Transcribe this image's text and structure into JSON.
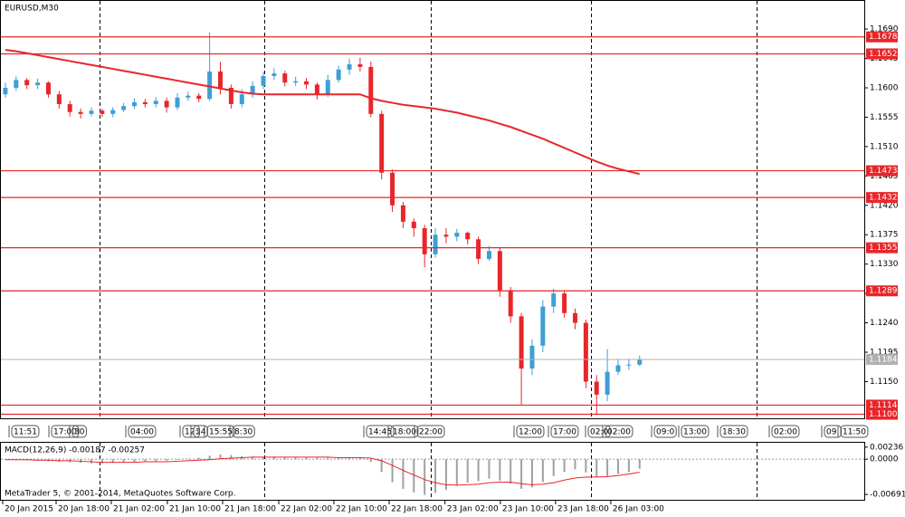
{
  "chart_data": [
    {
      "type": "candlestick",
      "title": "EURUSD,M30",
      "open": [
        1.159,
        1.16,
        1.1612,
        1.1604,
        1.1608,
        1.159,
        1.1575,
        1.1563,
        1.156,
        1.1565,
        1.156,
        1.1566,
        1.1572,
        1.1578,
        1.1575,
        1.158,
        1.157,
        1.1585,
        1.1588,
        1.1583,
        1.1625,
        1.16,
        1.1575,
        1.159,
        1.1603,
        1.1618,
        1.1622,
        1.1608,
        1.161,
        1.1605,
        1.159,
        1.1612,
        1.1628,
        1.1636,
        1.1632,
        1.156,
        1.147,
        1.142,
        1.1395,
        1.1385,
        1.1345,
        1.1375,
        1.1372,
        1.1378,
        1.1368,
        1.1338,
        1.135,
        1.129,
        1.125,
        1.117,
        1.1205,
        1.1265,
        1.1285,
        1.1255,
        1.124,
        1.115,
        1.113,
        1.1165,
        1.1175,
        1.1176
      ],
      "high": [
        1.1608,
        1.1618,
        1.1615,
        1.1614,
        1.161,
        1.1595,
        1.158,
        1.1568,
        1.157,
        1.1568,
        1.157,
        1.1577,
        1.1584,
        1.1583,
        1.1586,
        1.1585,
        1.1592,
        1.1594,
        1.1592,
        1.1685,
        1.164,
        1.1605,
        1.1598,
        1.161,
        1.1625,
        1.163,
        1.1626,
        1.1617,
        1.1615,
        1.1608,
        1.162,
        1.1634,
        1.1645,
        1.1646,
        1.164,
        1.1565,
        1.1475,
        1.1425,
        1.14,
        1.139,
        1.1385,
        1.1385,
        1.1384,
        1.138,
        1.1372,
        1.1358,
        1.1355,
        1.1295,
        1.1255,
        1.1215,
        1.1275,
        1.1292,
        1.129,
        1.1262,
        1.1245,
        1.116,
        1.12,
        1.1185,
        1.1185,
        1.119
      ],
      "low": [
        1.1585,
        1.1595,
        1.1598,
        1.1598,
        1.1585,
        1.1568,
        1.1556,
        1.1553,
        1.1556,
        1.1555,
        1.1555,
        1.1563,
        1.1568,
        1.157,
        1.157,
        1.1562,
        1.1566,
        1.158,
        1.1578,
        1.158,
        1.159,
        1.1568,
        1.157,
        1.1585,
        1.1598,
        1.1612,
        1.1602,
        1.1603,
        1.1598,
        1.1582,
        1.1586,
        1.1608,
        1.162,
        1.1625,
        1.1555,
        1.146,
        1.141,
        1.1385,
        1.1372,
        1.1325,
        1.134,
        1.1362,
        1.1365,
        1.136,
        1.133,
        1.1335,
        1.128,
        1.124,
        1.1115,
        1.116,
        1.1195,
        1.1255,
        1.1248,
        1.123,
        1.114,
        1.11,
        1.112,
        1.116,
        1.1168,
        1.1174
      ],
      "close": [
        1.16,
        1.1612,
        1.1604,
        1.1608,
        1.159,
        1.1575,
        1.1563,
        1.156,
        1.1565,
        1.156,
        1.1566,
        1.1572,
        1.1578,
        1.1575,
        1.158,
        1.157,
        1.1585,
        1.1588,
        1.1583,
        1.1625,
        1.16,
        1.1575,
        1.159,
        1.1603,
        1.1618,
        1.1622,
        1.1608,
        1.161,
        1.1605,
        1.159,
        1.1612,
        1.1628,
        1.1636,
        1.1632,
        1.156,
        1.147,
        1.142,
        1.1395,
        1.1385,
        1.1345,
        1.1375,
        1.1372,
        1.1378,
        1.1368,
        1.1338,
        1.135,
        1.129,
        1.125,
        1.117,
        1.1205,
        1.1265,
        1.1285,
        1.1255,
        1.124,
        1.115,
        1.113,
        1.1165,
        1.1175,
        1.1176,
        1.1184
      ],
      "up_color": "#3d9fd6",
      "down_color": "#e8262a",
      "moving_average": {
        "color": "#e8262a",
        "values": [
          1.1658,
          1.1656,
          1.1653,
          1.165,
          1.1647,
          1.1644,
          1.1641,
          1.1638,
          1.1635,
          1.1632,
          1.1629,
          1.1626,
          1.1623,
          1.162,
          1.1617,
          1.1614,
          1.1611,
          1.1608,
          1.1605,
          1.1602,
          1.1599,
          1.1596,
          1.1593,
          1.1591,
          1.159,
          1.159,
          1.159,
          1.159,
          1.159,
          1.159,
          1.159,
          1.159,
          1.159,
          1.159,
          1.1584,
          1.158,
          1.1577,
          1.1574,
          1.1572,
          1.157,
          1.1568,
          1.1565,
          1.1562,
          1.1558,
          1.1554,
          1.155,
          1.1545,
          1.154,
          1.1534,
          1.1528,
          1.1522,
          1.1515,
          1.1508,
          1.1501,
          1.1494,
          1.1487,
          1.1481,
          1.1476,
          1.1472,
          1.1468
        ]
      },
      "levels": [
        1.1678,
        1.1652,
        1.1473,
        1.1432,
        1.1355,
        1.1289,
        1.1114,
        {
          "value": 1.11,
          "label": "1.1100"
        }
      ],
      "level_color": "#e8262a",
      "bid": 1.1184,
      "bid_color": "#b0b0b0",
      "xlim": [
        -0.5,
        79.9
      ],
      "ylim": [
        1.10938,
        1.17345
      ],
      "yticks": [
        {
          "value": 1.169,
          "label": "1.1690"
        },
        1.1645,
        {
          "value": 1.16,
          "label": "1.1600"
        },
        1.1555,
        {
          "value": 1.151,
          "label": "1.1510"
        },
        1.1465,
        {
          "value": 1.142,
          "label": "1.1420"
        },
        1.1375,
        {
          "value": 1.133,
          "label": "1.1330"
        },
        1.1285,
        {
          "value": 1.124,
          "label": "1.1240"
        },
        1.1195,
        {
          "value": 1.115,
          "label": "1.1150"
        }
      ],
      "xticks": [
        {
          "value": -0.25,
          "label": "20 Jan 2015"
        },
        {
          "value": 4.72,
          "label": "20 Jan 18:00"
        },
        {
          "value": 9.85,
          "label": "21 Jan 02:00"
        },
        {
          "value": 15.07,
          "label": "21 Jan 10:00"
        },
        {
          "value": 20.21,
          "label": "21 Jan 18:00"
        },
        {
          "value": 25.43,
          "label": "22 Jan 02:00"
        },
        {
          "value": 30.56,
          "label": "22 Jan 10:00"
        },
        {
          "value": 35.7,
          "label": "22 Jan 18:00"
        },
        {
          "value": 40.9,
          "label": "23 Jan 02:00"
        },
        {
          "value": 46.05,
          "label": "23 Jan 10:00"
        },
        {
          "value": 51.18,
          "label": "23 Jan 18:00"
        },
        {
          "value": 56.32,
          "label": "26 Jan 03:00"
        }
      ],
      "xgrid": [
        8.76,
        24.08,
        39.57,
        54.47,
        69.87
      ],
      "event_labels": [
        "11:51",
        "17:00",
        "30",
        "04:00",
        "12:",
        "14",
        "15:55",
        "8:30",
        "14:45",
        "18:00",
        "22:00",
        "12:00",
        "17:00",
        "02:0",
        "02:00",
        "09:0",
        "13:00",
        "18:30",
        "02:00",
        "09:",
        "11:50"
      ]
    },
    {
      "type": "macd",
      "title": "MACD(12,26,9) -0.00187 -0.00257",
      "values": [
        -0.0001,
        -0.0002,
        -0.0002,
        -0.0003,
        -0.0004,
        -0.0005,
        -0.0006,
        -0.0007,
        -0.0008,
        -0.0008,
        -0.0007,
        -0.0006,
        -0.0005,
        -0.0004,
        -0.0004,
        -0.0003,
        -0.0001,
        0.0001,
        0.0003,
        0.0007,
        0.0009,
        0.0008,
        0.0006,
        0.0005,
        0.0005,
        0.0005,
        0.0004,
        0.0004,
        0.0004,
        0.0003,
        0.0003,
        0.0003,
        0.0004,
        0.0004,
        -0.0005,
        -0.0025,
        -0.0045,
        -0.0058,
        -0.0065,
        -0.007,
        -0.0066,
        -0.006,
        -0.0052,
        -0.0046,
        -0.0043,
        -0.0038,
        -0.0042,
        -0.0048,
        -0.0058,
        -0.0055,
        -0.0045,
        -0.0033,
        -0.0025,
        -0.002,
        -0.0026,
        -0.0035,
        -0.0033,
        -0.0029,
        -0.0025,
        -0.00187
      ],
      "color": "#a0a0a0",
      "signal": {
        "color": "#e8262a",
        "values": [
          -0.0001,
          -0.0001,
          -0.0001,
          -0.0002,
          -0.0002,
          -0.0003,
          -0.0003,
          -0.0004,
          -0.0005,
          -0.0006,
          -0.0006,
          -0.0006,
          -0.0006,
          -0.0005,
          -0.0005,
          -0.0005,
          -0.0004,
          -0.0003,
          -0.0002,
          -0.0001,
          0.0001,
          0.0002,
          0.0003,
          0.0004,
          0.0004,
          0.0004,
          0.0004,
          0.0004,
          0.0004,
          0.0004,
          0.0004,
          0.0003,
          0.0003,
          0.0003,
          0.0002,
          -0.0003,
          -0.0012,
          -0.0022,
          -0.0031,
          -0.004,
          -0.0046,
          -0.005,
          -0.0051,
          -0.005,
          -0.0049,
          -0.0046,
          -0.0045,
          -0.0045,
          -0.0048,
          -0.005,
          -0.0049,
          -0.0046,
          -0.0041,
          -0.0037,
          -0.0035,
          -0.0035,
          -0.0034,
          -0.0032,
          -0.0029,
          -0.00257
        ]
      },
      "xlim": [
        -0.5,
        79.9
      ],
      "ylim": [
        -0.00796,
        0.00323
      ],
      "yticks": [
        0.00236,
        {
          "value": 0,
          "label": "0.0000"
        },
        -0.00691
      ],
      "annotation": "MetaTrader 5, © 2001-2014, MetaQuotes Software Corp."
    }
  ]
}
